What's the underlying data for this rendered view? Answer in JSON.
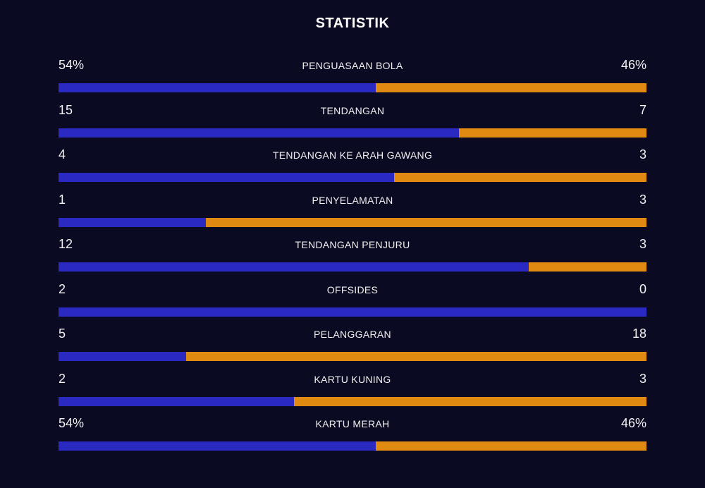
{
  "title": "STATISTIK",
  "colors": {
    "background": "#0a0a22",
    "home": "#2a2ac2",
    "away": "#e08a12"
  },
  "stats": [
    {
      "label": "PENGUASAAN BOLA",
      "home": "54%",
      "away": "46%",
      "home_share": 0.54
    },
    {
      "label": "TENDANGAN",
      "home": "15",
      "away": "7",
      "home_share": 0.681
    },
    {
      "label": "TENDANGAN KE ARAH GAWANG",
      "home": "4",
      "away": "3",
      "home_share": 0.571
    },
    {
      "label": "PENYELAMATAN",
      "home": "1",
      "away": "3",
      "home_share": 0.25
    },
    {
      "label": "TENDANGAN PENJURU",
      "home": "12",
      "away": "3",
      "home_share": 0.8
    },
    {
      "label": "OFFSIDES",
      "home": "2",
      "away": "0",
      "home_share": 1.0
    },
    {
      "label": "PELANGGARAN",
      "home": "5",
      "away": "18",
      "home_share": 0.217
    },
    {
      "label": "KARTU KUNING",
      "home": "2",
      "away": "3",
      "home_share": 0.4
    },
    {
      "label": "KARTU MERAH",
      "home": "54%",
      "away": "46%",
      "home_share": 0.54
    }
  ]
}
